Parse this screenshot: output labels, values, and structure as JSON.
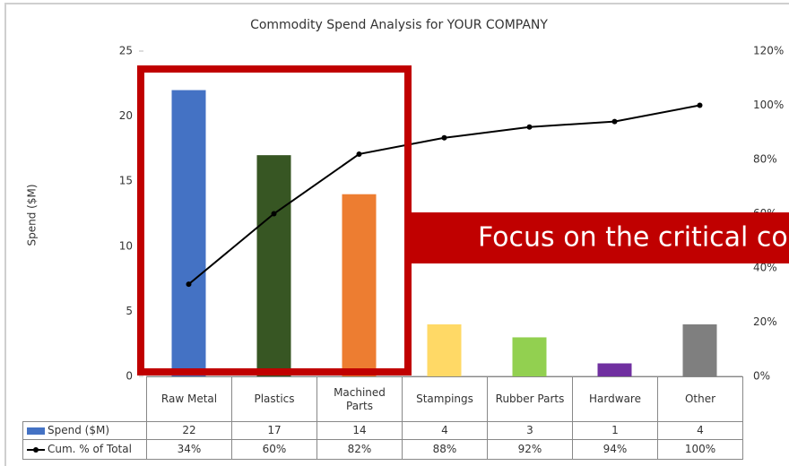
{
  "chart_data": {
    "type": "bar",
    "title": "Commodity Spend Analysis for YOUR COMPANY",
    "y_label": "Spend ($M)",
    "annotation": "Focus on the critical comm",
    "categories": [
      "Raw Metal",
      "Plastics",
      "Machined Parts",
      "Stampings",
      "Rubber Parts",
      "Hardware",
      "Other"
    ],
    "series": [
      {
        "name": "Spend ($M)",
        "type": "bar",
        "color": "#4472c4",
        "colors": [
          "#4472c4",
          "#375623",
          "#ed7d31",
          "#ffd966",
          "#92d050",
          "#7030a0",
          "#7f7f7f"
        ],
        "values": [
          22,
          17,
          14,
          4,
          3,
          1,
          4
        ]
      },
      {
        "name": "Cum. % of Total",
        "type": "line",
        "color": "#000000",
        "axis": "y2",
        "values": [
          34,
          60,
          82,
          88,
          92,
          94,
          100
        ],
        "value_labels": [
          "34%",
          "60%",
          "82%",
          "88%",
          "92%",
          "94%",
          "100%"
        ]
      }
    ],
    "ylim": [
      0,
      25
    ],
    "yticks": [
      0,
      5,
      10,
      15,
      20,
      25
    ],
    "y2lim": [
      0,
      120
    ],
    "y2ticks": [
      {
        "value": 0,
        "label": "0%"
      },
      {
        "value": 20,
        "label": "20%"
      },
      {
        "value": 40,
        "label": "40%"
      },
      {
        "value": 60,
        "label": "60%"
      },
      {
        "value": 80,
        "label": "80%"
      },
      {
        "value": 100,
        "label": "100%"
      },
      {
        "value": 120,
        "label": "120%"
      }
    ]
  }
}
